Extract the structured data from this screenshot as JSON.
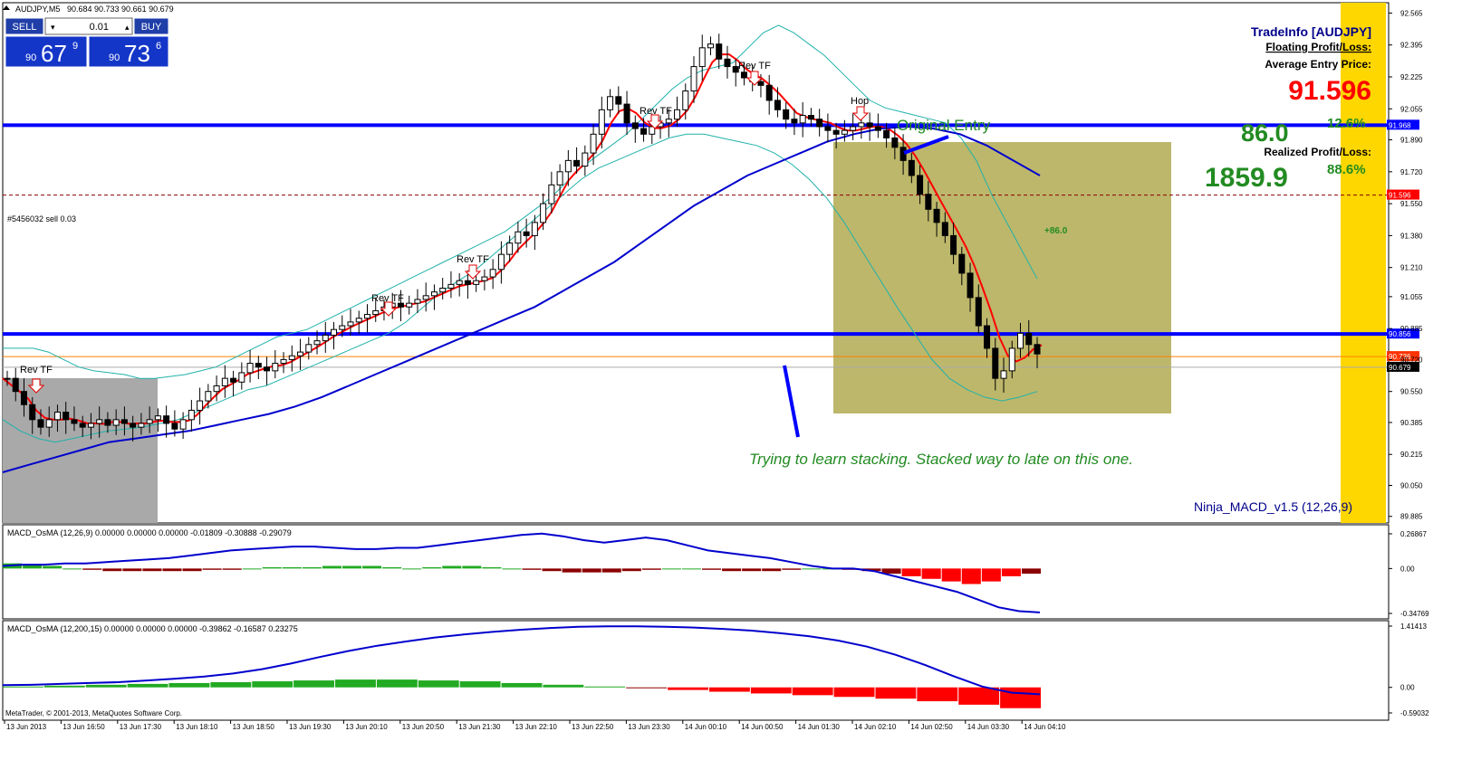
{
  "header": {
    "symbol": "AUDJPY,M5",
    "ohlc": "90.684 90.733 90.661 90.679"
  },
  "trade_panel": {
    "sell_label": "SELL",
    "buy_label": "BUY",
    "lot": "0.01",
    "sell_prefix": "90",
    "sell_big": "67",
    "sell_pip": "9",
    "buy_prefix": "90",
    "buy_big": "73",
    "buy_pip": "6"
  },
  "trade_info": {
    "title": "TradeInfo [AUDJPY]",
    "floating_label": "Floating Profit/Loss:",
    "avg_label": "Average Entry Price:",
    "avg_value": "91.596",
    "floating_value": "86.0",
    "floating_pct": "12.6%",
    "realized_label": "Realized Profit/Loss:",
    "realized_value": "1859.9",
    "realized_pct": "88.6%"
  },
  "annotations": {
    "original_entry": "Original Entry",
    "note": "Trying to learn stacking. Stacked way to late on this one.",
    "order_label": "#5456032 sell 0.03",
    "order_profit": "+86.0",
    "rev_tf": "Rev TF",
    "hop": "Hop",
    "indicator_name": "Ninja_MACD_v1.5 (12,26,9)"
  },
  "footer": {
    "copyright": "MetaTrader, © 2001-2013, MetaQuotes Software Corp."
  },
  "colors": {
    "level_line": "#0000ff",
    "ma_fast": "#ff0000",
    "ma_slow": "#0000cd",
    "band": "#20b2aa",
    "zone_box": "#bdb76b",
    "gray_box": "#a9a9a9",
    "right_band": "#ffd700",
    "green_text": "#228b22",
    "red_text": "#ff0000"
  },
  "chart_data": [
    {
      "type": "candlestick",
      "title": "AUDJPY,M5",
      "ylim": [
        89.85,
        92.62
      ],
      "price_ticks": [
        "92.565",
        "92.395",
        "92.225",
        "92.055",
        "91.890",
        "91.720",
        "91.550",
        "91.380",
        "91.210",
        "91.055",
        "90.885",
        "90.720",
        "90.550",
        "90.385",
        "90.215",
        "90.050",
        "89.885"
      ],
      "price_tick_values": [
        92.565,
        92.395,
        92.225,
        92.055,
        91.89,
        91.72,
        91.55,
        91.38,
        91.21,
        91.055,
        90.885,
        90.72,
        90.55,
        90.385,
        90.215,
        90.05,
        89.885
      ],
      "time_labels": [
        "13 Jun 2013",
        "13 Jun 16:50",
        "13 Jun 17:30",
        "13 Jun 18:10",
        "13 Jun 18:50",
        "13 Jun 19:30",
        "13 Jun 20:10",
        "13 Jun 20:50",
        "13 Jun 21:30",
        "13 Jun 22:10",
        "13 Jun 22:50",
        "13 Jun 23:30",
        "14 Jun 00:10",
        "14 Jun 00:50",
        "14 Jun 01:30",
        "14 Jun 02:10",
        "14 Jun 02:50",
        "14 Jun 03:30",
        "14 Jun 04:10"
      ],
      "series": [
        {
          "name": "close",
          "values": [
            90.62,
            90.55,
            90.48,
            90.4,
            90.36,
            90.4,
            90.44,
            90.4,
            90.38,
            90.36,
            90.38,
            90.4,
            90.37,
            90.4,
            90.38,
            90.36,
            90.38,
            90.4,
            90.42,
            90.38,
            90.35,
            90.4,
            90.45,
            90.5,
            90.55,
            90.58,
            90.62,
            90.6,
            90.65,
            90.7,
            90.68,
            90.66,
            90.7,
            90.72,
            90.74,
            90.76,
            90.8,
            90.82,
            90.85,
            90.88,
            90.9,
            90.92,
            90.94,
            90.96,
            90.98,
            91.0,
            91.02,
            91.0,
            91.02,
            91.04,
            91.06,
            91.08,
            91.1,
            91.12,
            91.14,
            91.12,
            91.14,
            91.16,
            91.2,
            91.28,
            91.34,
            91.4,
            91.38,
            91.45,
            91.55,
            91.65,
            91.72,
            91.78,
            91.75,
            91.82,
            91.92,
            92.05,
            92.12,
            92.08,
            91.98,
            91.95,
            91.92,
            91.96,
            91.98,
            92.0,
            92.05,
            92.15,
            92.28,
            92.38,
            92.4,
            92.32,
            92.28,
            92.25,
            92.22,
            92.2,
            92.18,
            92.1,
            92.05,
            92.0,
            91.98,
            92.02,
            92.0,
            91.96,
            91.94,
            91.92,
            91.94,
            91.96,
            91.98,
            91.96,
            91.94,
            91.9,
            91.85,
            91.78,
            91.7,
            91.6,
            91.52,
            91.45,
            91.38,
            91.28,
            91.18,
            91.05,
            90.9,
            90.78,
            90.62,
            90.66,
            90.78,
            90.86,
            90.8,
            90.75
          ]
        },
        {
          "name": "Bands upper",
          "values": [
            90.78,
            90.78,
            90.78,
            90.76,
            90.72,
            90.68,
            90.66,
            90.65,
            90.64,
            90.62,
            90.62,
            90.63,
            90.64,
            90.66,
            90.68,
            90.72,
            90.76,
            90.8,
            90.84,
            90.86,
            90.88,
            90.92,
            90.96,
            91.0,
            91.04,
            91.08,
            91.12,
            91.16,
            91.2,
            91.24,
            91.28,
            91.32,
            91.36,
            91.4,
            91.46,
            91.52,
            91.58,
            91.66,
            91.74,
            91.8,
            91.86,
            91.92,
            92.0,
            92.08,
            92.16,
            92.22,
            92.26,
            92.28,
            92.3,
            92.38,
            92.46,
            92.5,
            92.46,
            92.4,
            92.34,
            92.26,
            92.18,
            92.1,
            92.06,
            92.04,
            92.02,
            92.0,
            91.98,
            91.9,
            91.78,
            91.6,
            91.45,
            91.3,
            91.15
          ]
        },
        {
          "name": "Bands lower",
          "values": [
            90.4,
            90.34,
            90.3,
            90.28,
            90.3,
            90.32,
            90.34,
            90.35,
            90.36,
            90.38,
            90.4,
            90.44,
            90.48,
            90.52,
            90.56,
            90.58,
            90.62,
            90.66,
            90.7,
            90.74,
            90.78,
            90.82,
            90.86,
            90.92,
            91.0,
            91.08,
            91.14,
            91.2,
            91.28,
            91.36,
            91.44,
            91.52,
            91.6,
            91.68,
            91.74,
            91.78,
            91.82,
            91.86,
            91.9,
            91.92,
            91.92,
            91.9,
            91.88,
            91.86,
            91.82,
            91.76,
            91.68,
            91.58,
            91.45,
            91.3,
            91.15,
            91.0,
            90.86,
            90.72,
            90.62,
            90.56,
            90.52,
            90.5,
            90.52,
            90.55
          ]
        },
        {
          "name": "MA slow",
          "values": [
            90.12,
            90.16,
            90.2,
            90.24,
            90.28,
            90.3,
            90.32,
            90.34,
            90.37,
            90.4,
            90.43,
            90.47,
            90.52,
            90.58,
            90.64,
            90.7,
            90.76,
            90.82,
            90.88,
            90.94,
            91.0,
            91.08,
            91.16,
            91.24,
            91.34,
            91.44,
            91.54,
            91.62,
            91.7,
            91.76,
            91.82,
            91.88,
            91.92,
            91.95,
            91.96,
            91.95,
            91.92,
            91.86,
            91.78,
            91.7
          ]
        }
      ],
      "levels": [
        91.968,
        90.856,
        90.736,
        90.679,
        91.596
      ],
      "level_labels": [
        "91.968",
        "90.856",
        "90.736",
        "90.679",
        "91.596"
      ]
    },
    {
      "type": "bar",
      "title": "MACD_OsMA (12,26,9) 0.00000 0.00000 0.00000 -0.01809 -0.30888 -0.29079",
      "ylim": [
        -0.3477,
        0.2687
      ],
      "ticks": [
        "0.26867",
        "0.00",
        "-0.34769"
      ],
      "tick_values": [
        0.26867,
        0.0,
        -0.34769
      ],
      "series": [
        {
          "name": "MACD line",
          "values": [
            0.02,
            0.03,
            0.03,
            0.04,
            0.04,
            0.05,
            0.06,
            0.07,
            0.08,
            0.1,
            0.12,
            0.14,
            0.15,
            0.16,
            0.17,
            0.17,
            0.16,
            0.15,
            0.15,
            0.16,
            0.16,
            0.18,
            0.2,
            0.22,
            0.24,
            0.26,
            0.27,
            0.25,
            0.22,
            0.2,
            0.22,
            0.24,
            0.22,
            0.18,
            0.14,
            0.12,
            0.1,
            0.08,
            0.05,
            0.02,
            0.0,
            0.0,
            -0.02,
            -0.06,
            -0.1,
            -0.14,
            -0.18,
            -0.24,
            -0.3,
            -0.33,
            -0.34
          ]
        },
        {
          "name": "OsMA",
          "values": [
            0.04,
            0.03,
            0.02,
            0.0,
            -0.01,
            -0.02,
            -0.02,
            -0.02,
            -0.02,
            -0.02,
            -0.01,
            -0.01,
            0.0,
            0.01,
            0.01,
            0.01,
            0.02,
            0.02,
            0.02,
            0.01,
            0.0,
            0.01,
            0.02,
            0.02,
            0.01,
            0.0,
            -0.01,
            -0.02,
            -0.03,
            -0.03,
            -0.03,
            -0.02,
            -0.01,
            0.0,
            0.0,
            -0.01,
            -0.02,
            -0.02,
            -0.02,
            -0.01,
            0.0,
            0.0,
            -0.01,
            -0.02,
            -0.04,
            -0.06,
            -0.08,
            -0.1,
            -0.12,
            -0.1,
            -0.06,
            -0.04
          ]
        }
      ]
    },
    {
      "type": "bar",
      "title": "MACD_OsMA (12,200,15) 0.00000 0.00000 0.00000 -0.39862 -0.16587 0.23275",
      "ylim": [
        -0.5903,
        1.4141
      ],
      "ticks": [
        "1.41413",
        "0.00",
        "-0.59032"
      ],
      "tick_values": [
        1.41413,
        0.0,
        -0.59032
      ],
      "series": [
        {
          "name": "MACD line",
          "values": [
            0.05,
            0.06,
            0.08,
            0.1,
            0.12,
            0.16,
            0.2,
            0.25,
            0.32,
            0.42,
            0.55,
            0.7,
            0.84,
            0.96,
            1.06,
            1.15,
            1.22,
            1.28,
            1.33,
            1.37,
            1.4,
            1.41,
            1.41,
            1.4,
            1.38,
            1.35,
            1.31,
            1.25,
            1.18,
            1.08,
            0.94,
            0.75,
            0.52,
            0.26,
            0.02,
            -0.12,
            -0.16
          ]
        },
        {
          "name": "OsMA",
          "values": [
            0.02,
            0.04,
            0.06,
            0.08,
            0.1,
            0.12,
            0.14,
            0.16,
            0.18,
            0.18,
            0.16,
            0.14,
            0.1,
            0.06,
            0.02,
            -0.02,
            -0.06,
            -0.1,
            -0.14,
            -0.18,
            -0.22,
            -0.26,
            -0.32,
            -0.4,
            -0.48
          ]
        }
      ]
    }
  ]
}
